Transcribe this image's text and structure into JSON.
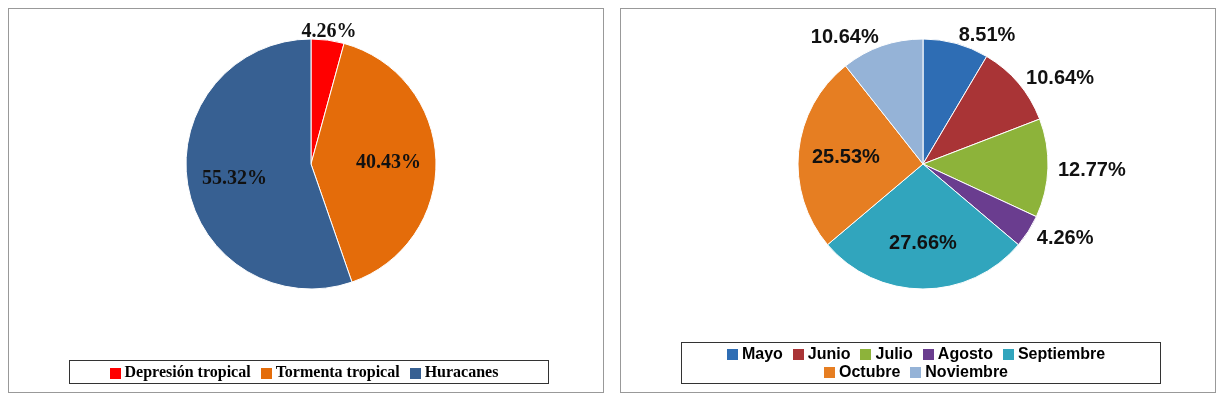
{
  "chart_data": [
    {
      "type": "pie",
      "categories": [
        "Depresión tropical",
        "Tormenta tropical",
        "Huracanes"
      ],
      "values": [
        4.26,
        40.43,
        55.32
      ],
      "colors": [
        "#ff0000",
        "#e46c0a",
        "#376092"
      ],
      "value_labels": [
        "4.26%",
        "40.43%",
        "55.32%"
      ],
      "legend": "bottom"
    },
    {
      "type": "pie",
      "categories": [
        "Mayo",
        "Junio",
        "Julio",
        "Agosto",
        "Septiembre",
        "Octubre",
        "Noviembre"
      ],
      "values": [
        8.51,
        10.64,
        12.77,
        4.26,
        27.66,
        25.53,
        10.64
      ],
      "colors": [
        "#2e6db4",
        "#a93436",
        "#8db33a",
        "#6a3d8f",
        "#31a5bd",
        "#e67e22",
        "#95b3d7"
      ],
      "value_labels": [
        "8.51%",
        "10.64%",
        "12.77%",
        "4.26%",
        "27.66%",
        "25.53%",
        "10.64%"
      ],
      "legend": "bottom"
    }
  ]
}
